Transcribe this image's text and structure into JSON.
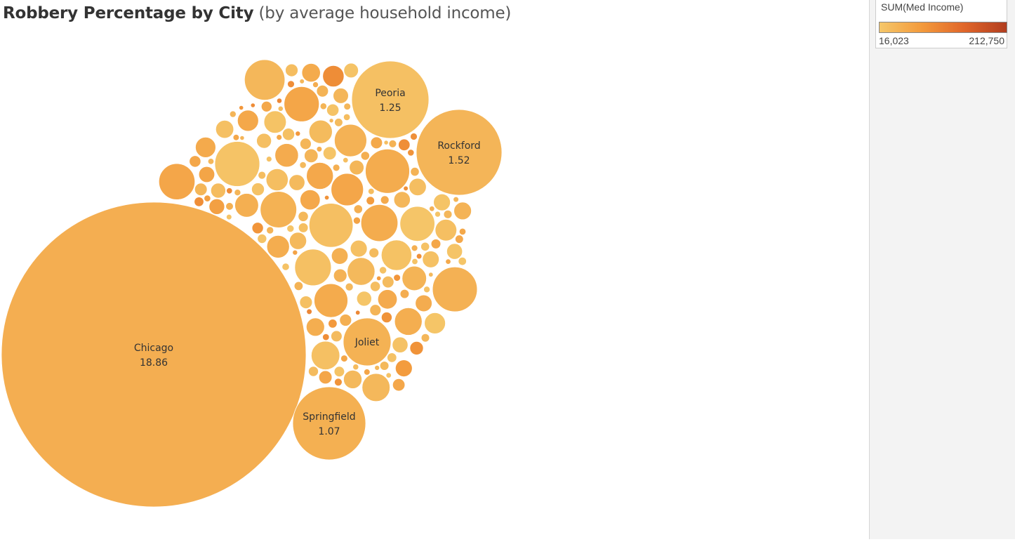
{
  "title": {
    "main": "Robbery Percentage by City",
    "sub": "(by average household income)"
  },
  "legend": {
    "title": "SUM(Med Income)",
    "min_label": "16,023",
    "max_label": "212,750",
    "min": 16023,
    "max": 212750,
    "gradient": [
      "#f5c76a",
      "#f39a3c",
      "#e0662a",
      "#b13d1f"
    ]
  },
  "chart_data": {
    "type": "packed-bubble",
    "size_measure": "Robbery Percentage",
    "color_measure": "SUM(Med Income)",
    "labeled_cities": [
      {
        "city": "Chicago",
        "value": "18.86",
        "income": 52000
      },
      {
        "city": "Rockford",
        "value": "1.52",
        "income": 42000
      },
      {
        "city": "Peoria",
        "value": "1.25",
        "income": 26000
      },
      {
        "city": "Springfield",
        "value": "1.07",
        "income": 50000
      },
      {
        "city": "Joliet",
        "value": "",
        "income": 47000
      }
    ]
  }
}
